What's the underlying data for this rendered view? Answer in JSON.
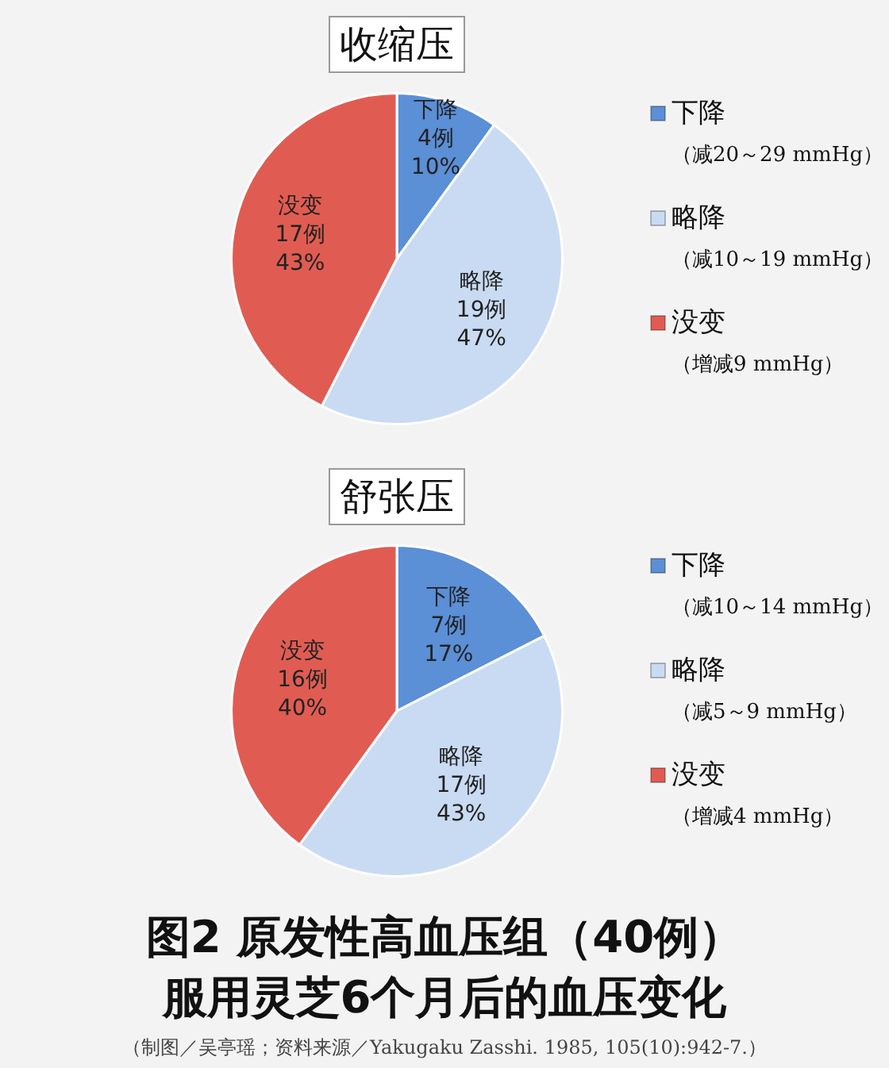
{
  "chart_data": [
    {
      "type": "pie",
      "title": "收缩压",
      "categories": [
        "下降（减20～29 mmHg）",
        "略降（减10～19 mmHg）",
        "没变（增减9 mmHg）"
      ],
      "values": [
        4,
        19,
        17
      ],
      "value_labels": [
        "下降\n4例\n10%",
        "略降\n19例\n47%",
        "没变\n17例\n43%"
      ],
      "colors": [
        "#5b8fd6",
        "#c9dbf3",
        "#e05c52"
      ],
      "legend": "right"
    },
    {
      "type": "pie",
      "title": "舒张压",
      "categories": [
        "下降（减10～14 mmHg）",
        "略降（减5～9 mmHg）",
        "没变（增减4 mmHg）"
      ],
      "values": [
        7,
        17,
        16
      ],
      "value_labels": [
        "下降\n7例\n17%",
        "略降\n17例\n43%",
        "没变\n16例\n40%"
      ],
      "colors": [
        "#5b8fd6",
        "#c9dbf3",
        "#e05c52"
      ],
      "legend": "right"
    },
    {
      "type": "other",
      "title": "图2 原发性高血压组（40例）服用灵芝6个月后的血压变化",
      "annotations": [
        "（制图／吴亭瑶；资料来源／Yakugaku Zasshi. 1985, 105(10):942-7.）"
      ]
    }
  ]
}
